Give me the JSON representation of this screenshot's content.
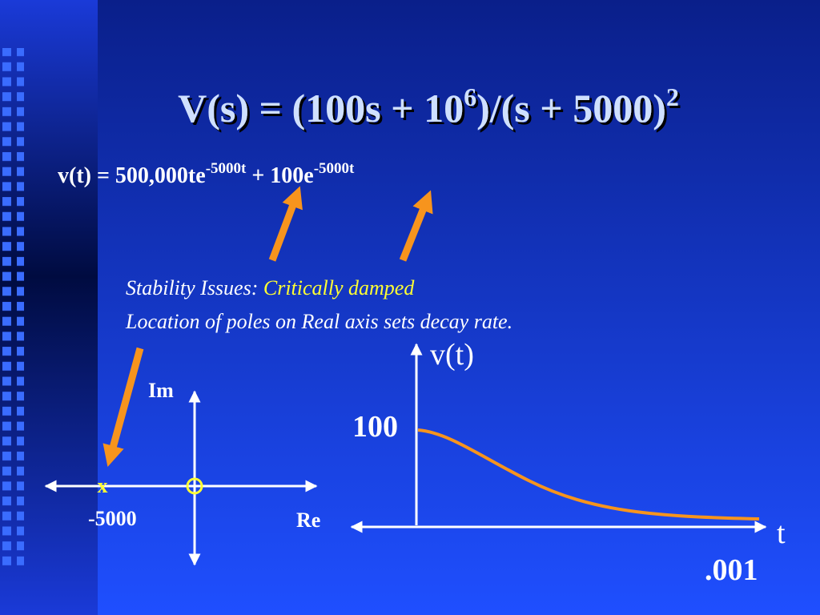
{
  "title": {
    "parts": [
      "V(s) = (100s + 10",
      "6",
      ")/(s + 5000)",
      "2"
    ]
  },
  "equation": {
    "parts": [
      "v(t) = 500,000te",
      "-5000t",
      " + 100e",
      "-5000t"
    ]
  },
  "notes": {
    "line1": {
      "label": "Stability Issues: ",
      "highlight": "Critically damped"
    },
    "line2": "Location of poles on Real axis sets decay rate."
  },
  "pole_plot": {
    "im_label": "Im",
    "re_label": "Re",
    "pole_marker": "x",
    "pole_value": "-5000"
  },
  "response_plot": {
    "y_label": "v(t)",
    "x_label": "t",
    "y_value": "100",
    "x_value": ".001"
  }
}
